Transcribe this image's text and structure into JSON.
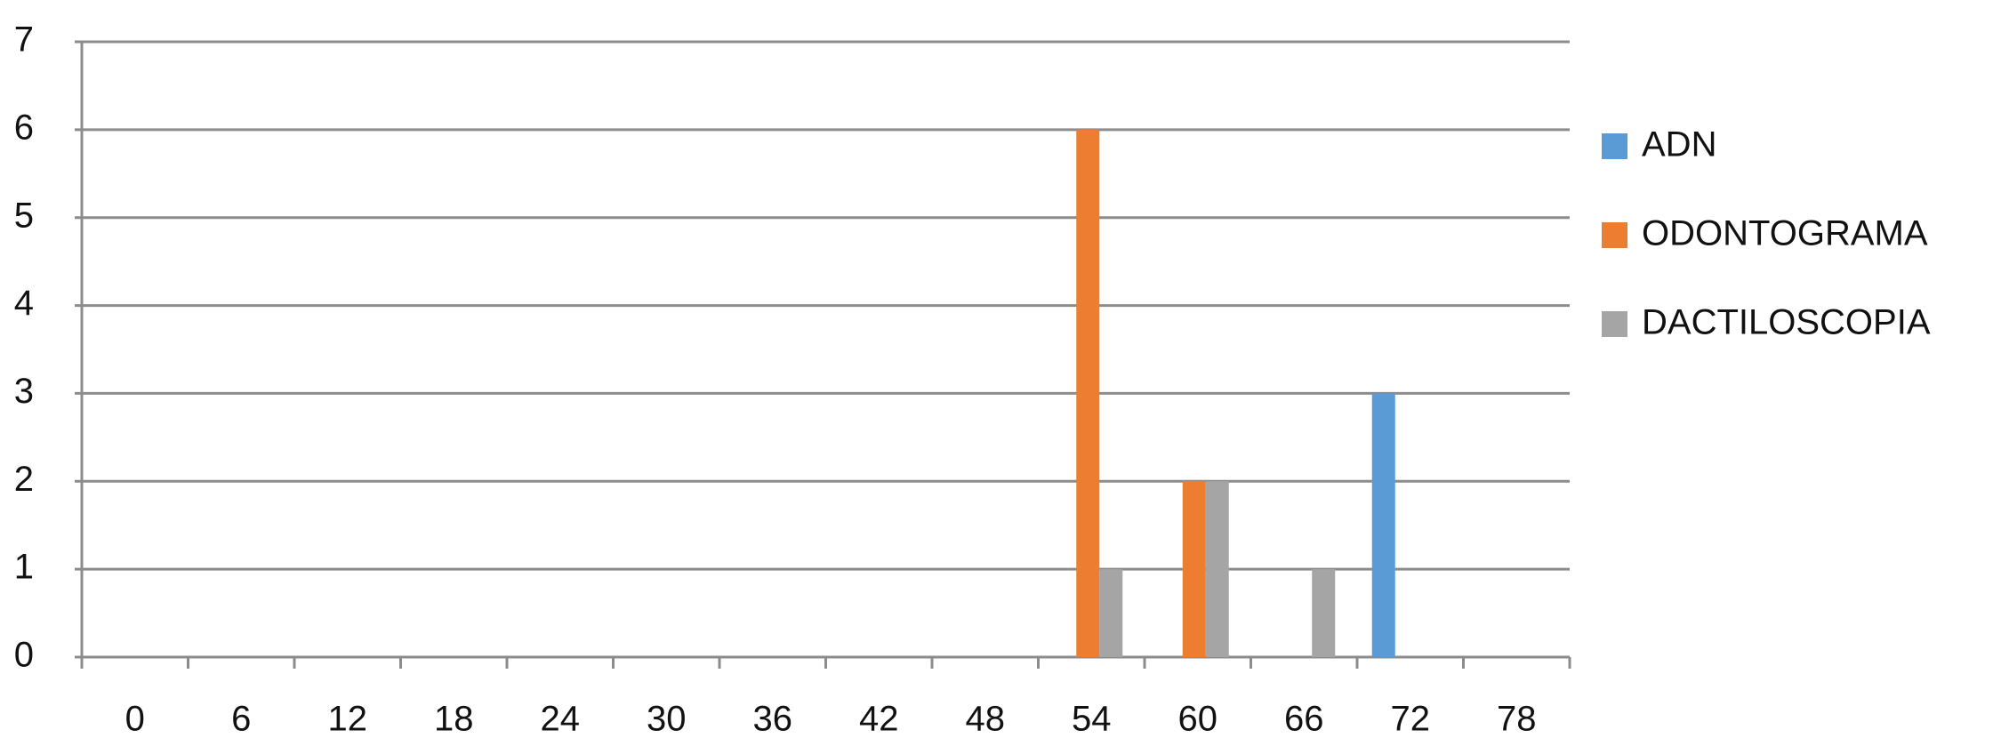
{
  "chart_data": {
    "type": "bar",
    "categories": [
      "0",
      "6",
      "12",
      "18",
      "24",
      "30",
      "36",
      "42",
      "48",
      "54",
      "60",
      "66",
      "72",
      "78"
    ],
    "series": [
      {
        "name": "ADN",
        "color": "#5b9bd5",
        "values": [
          0,
          0,
          0,
          0,
          0,
          0,
          0,
          0,
          0,
          0,
          0,
          0,
          3,
          0
        ]
      },
      {
        "name": "ODONTOGRAMA",
        "color": "#ed7d31",
        "values": [
          0,
          0,
          0,
          0,
          0,
          0,
          0,
          0,
          0,
          6,
          2,
          0,
          0,
          0
        ]
      },
      {
        "name": "DACTILOSCOPIA",
        "color": "#a5a5a5",
        "values": [
          0,
          0,
          0,
          0,
          0,
          0,
          0,
          0,
          0,
          1,
          2,
          1,
          0,
          0
        ]
      }
    ],
    "ylim": [
      0,
      7
    ],
    "yticks": [
      0,
      1,
      2,
      3,
      4,
      5,
      6,
      7
    ],
    "grid": true,
    "legend": "right"
  }
}
